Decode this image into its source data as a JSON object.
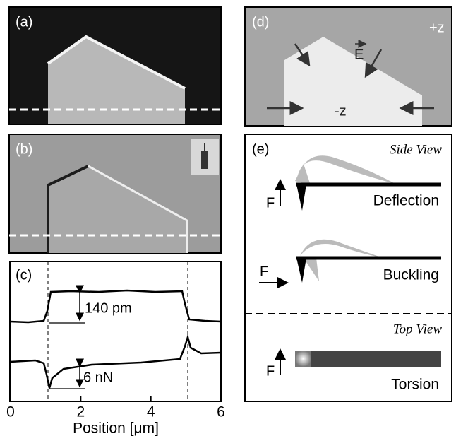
{
  "panel_a": {
    "label": "(a)"
  },
  "panel_b": {
    "label": "(b)"
  },
  "panel_c": {
    "label": "(c)",
    "annotations": [
      "140 pm",
      "6 nN"
    ],
    "x_axis": {
      "label": "Position [μm]",
      "xlim": [
        0,
        6
      ],
      "xticks": [
        0,
        2,
        4,
        6
      ]
    }
  },
  "panel_d": {
    "label": "(d)",
    "top": "+z",
    "bottom": "-z",
    "field": "E"
  },
  "panel_e": {
    "label": "(e)",
    "side_view": "Side View",
    "force_1": "F",
    "deflection": "Deflection",
    "force_2": "F",
    "buckling": "Buckling",
    "top_view": "Top View",
    "force_3": "F",
    "torsion": "Torsion"
  }
}
